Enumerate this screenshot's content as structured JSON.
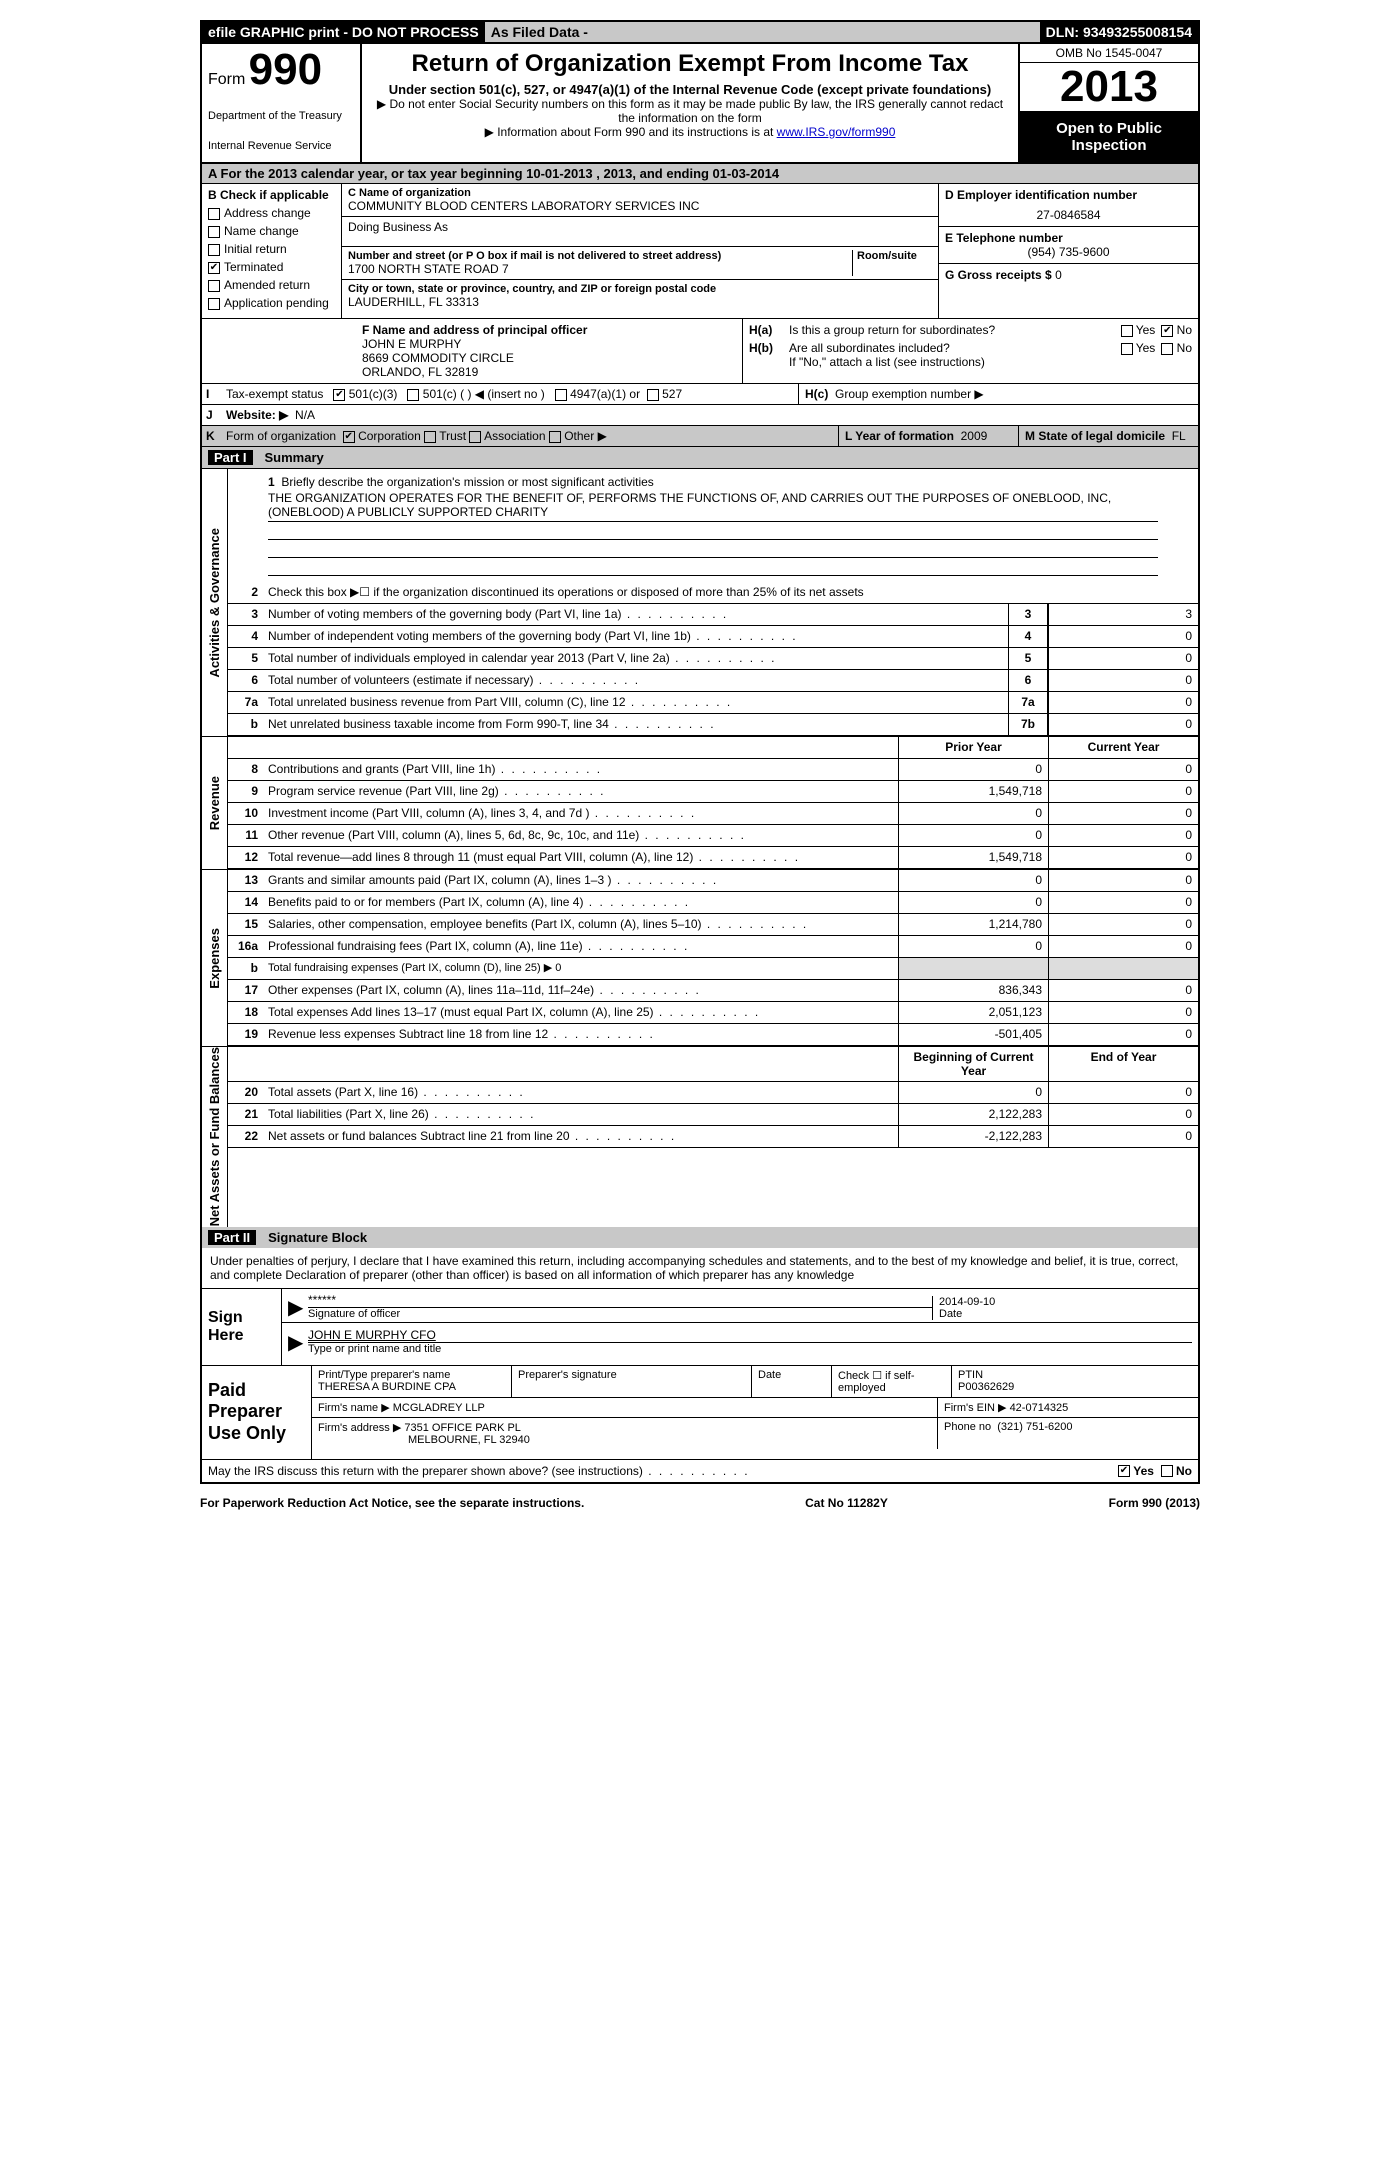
{
  "topbar": {
    "efile": "efile GRAPHIC print - DO NOT PROCESS",
    "asfiled": "As Filed Data -",
    "dln_label": "DLN:",
    "dln": "93493255008154"
  },
  "header": {
    "form_label": "Form",
    "form_number": "990",
    "dept1": "Department of the Treasury",
    "dept2": "Internal Revenue Service",
    "title": "Return of Organization Exempt From Income Tax",
    "subtitle": "Under section 501(c), 527, or 4947(a)(1) of the Internal Revenue Code (except private foundations)",
    "note1": "▶ Do not enter Social Security numbers on this form as it may be made public  By law, the IRS generally cannot redact the information on the form",
    "note2_pre": "▶ Information about Form 990 and its instructions is at ",
    "note2_link": "www.IRS.gov/form990",
    "omb": "OMB No  1545-0047",
    "year": "2013",
    "open1": "Open to Public",
    "open2": "Inspection"
  },
  "row_a": "A  For the 2013 calendar year, or tax year beginning 10-01-2013     , 2013, and ending 01-03-2014",
  "col_b": {
    "header": "B  Check if applicable",
    "items": [
      {
        "label": "Address change",
        "checked": false
      },
      {
        "label": "Name change",
        "checked": false
      },
      {
        "label": "Initial return",
        "checked": false
      },
      {
        "label": "Terminated",
        "checked": true
      },
      {
        "label": "Amended return",
        "checked": false
      },
      {
        "label": "Application pending",
        "checked": false
      }
    ]
  },
  "col_c": {
    "name_label": "C Name of organization",
    "name": "COMMUNITY BLOOD CENTERS LABORATORY SERVICES INC",
    "dba_label": "Doing Business As",
    "dba": "",
    "addr_label": "Number and street (or P O  box if mail is not delivered to street address)",
    "room_label": "Room/suite",
    "addr": "1700 NORTH STATE ROAD 7",
    "city_label": "City or town, state or province, country, and ZIP or foreign postal code",
    "city": "LAUDERHILL, FL  33313"
  },
  "col_d": {
    "ein_label": "D Employer identification number",
    "ein": "27-0846584",
    "tel_label": "E Telephone number",
    "tel": "(954) 735-9600",
    "gross_label": "G Gross receipts $",
    "gross": "0"
  },
  "officer": {
    "label": "F  Name and address of principal officer",
    "name": "JOHN E MURPHY",
    "addr1": "8669 COMMODITY CIRCLE",
    "addr2": "ORLANDO, FL  32819"
  },
  "h_block": {
    "ha_label": "H(a)",
    "ha_text": "Is this a group return for subordinates?",
    "ha_yes": "Yes",
    "ha_no": "No",
    "hb_label": "H(b)",
    "hb_text": "Are all subordinates included?",
    "hb_note": "If \"No,\" attach a list  (see instructions)",
    "hc_label": "H(c)",
    "hc_text": "Group exemption number ▶"
  },
  "row_i": {
    "label": "I",
    "text": "Tax-exempt status",
    "opt1": "501(c)(3)",
    "opt2": "501(c) (   ) ◀ (insert no )",
    "opt3": "4947(a)(1) or",
    "opt4": "527"
  },
  "row_j": {
    "label": "J",
    "text": "Website: ▶",
    "val": "N/A"
  },
  "row_k": {
    "label": "K",
    "text": "Form of organization",
    "corp": "Corporation",
    "trust": "Trust",
    "assoc": "Association",
    "other": "Other ▶",
    "year_label": "L Year of formation",
    "year_val": "2009",
    "state_label": "M State of legal domicile",
    "state_val": "FL"
  },
  "part1": {
    "label": "Part I",
    "title": "Summary"
  },
  "mission": {
    "num": "1",
    "label": "Briefly describe the organization's mission or most significant activities",
    "text": "THE ORGANIZATION OPERATES FOR THE BENEFIT OF, PERFORMS THE FUNCTIONS OF, AND CARRIES OUT THE PURPOSES OF ONEBLOOD, INC, (ONEBLOOD) A PUBLICLY SUPPORTED CHARITY"
  },
  "line2": {
    "num": "2",
    "text": "Check this box ▶☐  if the organization discontinued its operations or disposed of more than 25% of its net assets"
  },
  "gov_rows": [
    {
      "num": "3",
      "desc": "Number of voting members of the governing body (Part VI, line 1a)",
      "lbl": "3",
      "val": "3"
    },
    {
      "num": "4",
      "desc": "Number of independent voting members of the governing body (Part VI, line 1b)",
      "lbl": "4",
      "val": "0"
    },
    {
      "num": "5",
      "desc": "Total number of individuals employed in calendar year 2013 (Part V, line 2a)",
      "lbl": "5",
      "val": "0"
    },
    {
      "num": "6",
      "desc": "Total number of volunteers (estimate if necessary)",
      "lbl": "6",
      "val": "0"
    },
    {
      "num": "7a",
      "desc": "Total unrelated business revenue from Part VIII, column (C), line 12",
      "lbl": "7a",
      "val": "0"
    },
    {
      "num": "b",
      "desc": "Net unrelated business taxable income from Form 990-T, line 34",
      "lbl": "7b",
      "val": "0"
    }
  ],
  "rev_header": {
    "col1": "Prior Year",
    "col2": "Current Year"
  },
  "rev_rows": [
    {
      "num": "8",
      "desc": "Contributions and grants (Part VIII, line 1h)",
      "c1": "0",
      "c2": "0"
    },
    {
      "num": "9",
      "desc": "Program service revenue (Part VIII, line 2g)",
      "c1": "1,549,718",
      "c2": "0"
    },
    {
      "num": "10",
      "desc": "Investment income (Part VIII, column (A), lines 3, 4, and 7d )",
      "c1": "0",
      "c2": "0"
    },
    {
      "num": "11",
      "desc": "Other revenue (Part VIII, column (A), lines 5, 6d, 8c, 9c, 10c, and 11e)",
      "c1": "0",
      "c2": "0"
    },
    {
      "num": "12",
      "desc": "Total revenue—add lines 8 through 11 (must equal Part VIII, column (A), line 12)",
      "c1": "1,549,718",
      "c2": "0"
    }
  ],
  "exp_rows": [
    {
      "num": "13",
      "desc": "Grants and similar amounts paid (Part IX, column (A), lines 1–3 )",
      "c1": "0",
      "c2": "0"
    },
    {
      "num": "14",
      "desc": "Benefits paid to or for members (Part IX, column (A), line 4)",
      "c1": "0",
      "c2": "0"
    },
    {
      "num": "15",
      "desc": "Salaries, other compensation, employee benefits (Part IX, column (A), lines 5–10)",
      "c1": "1,214,780",
      "c2": "0"
    },
    {
      "num": "16a",
      "desc": "Professional fundraising fees (Part IX, column (A), line 11e)",
      "c1": "0",
      "c2": "0"
    },
    {
      "num": "b",
      "desc": "Total fundraising expenses (Part IX, column (D), line 25) ▶ 0",
      "c1": "",
      "c2": ""
    },
    {
      "num": "17",
      "desc": "Other expenses (Part IX, column (A), lines 11a–11d, 11f–24e)",
      "c1": "836,343",
      "c2": "0"
    },
    {
      "num": "18",
      "desc": "Total expenses  Add lines 13–17 (must equal Part IX, column (A), line 25)",
      "c1": "2,051,123",
      "c2": "0"
    },
    {
      "num": "19",
      "desc": "Revenue less expenses  Subtract line 18 from line 12",
      "c1": "-501,405",
      "c2": "0"
    }
  ],
  "bal_header": {
    "col1": "Beginning of Current Year",
    "col2": "End of Year"
  },
  "bal_rows": [
    {
      "num": "20",
      "desc": "Total assets (Part X, line 16)",
      "c1": "0",
      "c2": "0"
    },
    {
      "num": "21",
      "desc": "Total liabilities (Part X, line 26)",
      "c1": "2,122,283",
      "c2": "0"
    },
    {
      "num": "22",
      "desc": "Net assets or fund balances  Subtract line 21 from line 20",
      "c1": "-2,122,283",
      "c2": "0"
    }
  ],
  "vtabs": {
    "gov": "Activities & Governance",
    "rev": "Revenue",
    "exp": "Expenses",
    "bal": "Net Assets or Fund Balances"
  },
  "part2": {
    "label": "Part II",
    "title": "Signature Block"
  },
  "sig_decl": "Under penalties of perjury, I declare that I have examined this return, including accompanying schedules and statements, and to the best of my knowledge and belief, it is true, correct, and complete  Declaration of preparer (other than officer) is based on all information of which preparer has any knowledge",
  "sign": {
    "side": "Sign Here",
    "sig_val": "******",
    "sig_label": "Signature of officer",
    "date_val": "2014-09-10",
    "date_label": "Date",
    "name_val": "JOHN E MURPHY CFO",
    "name_label": "Type or print name and title"
  },
  "prep": {
    "side": "Paid Preparer Use Only",
    "h1": "Print/Type preparer's name",
    "h2": "Preparer's signature",
    "h3": "Date",
    "h4a": "Check ☐ if self-employed",
    "h4b_label": "PTIN",
    "h4b": "P00362629",
    "name": "THERESA A BURDINE CPA",
    "firm_label": "Firm's name   ▶",
    "firm": "MCGLADREY LLP",
    "ein_label": "Firm's EIN ▶",
    "ein": "42-0714325",
    "addr_label": "Firm's address ▶",
    "addr1": "7351 OFFICE PARK PL",
    "addr2": "MELBOURNE, FL  32940",
    "phone_label": "Phone no",
    "phone": "(321) 751-6200"
  },
  "discuss": {
    "text": "May the IRS discuss this return with the preparer shown above? (see instructions)",
    "yes": "Yes",
    "no": "No"
  },
  "footer": {
    "left": "For Paperwork Reduction Act Notice, see the separate instructions.",
    "center": "Cat  No  11282Y",
    "right": "Form 990 (2013)"
  }
}
